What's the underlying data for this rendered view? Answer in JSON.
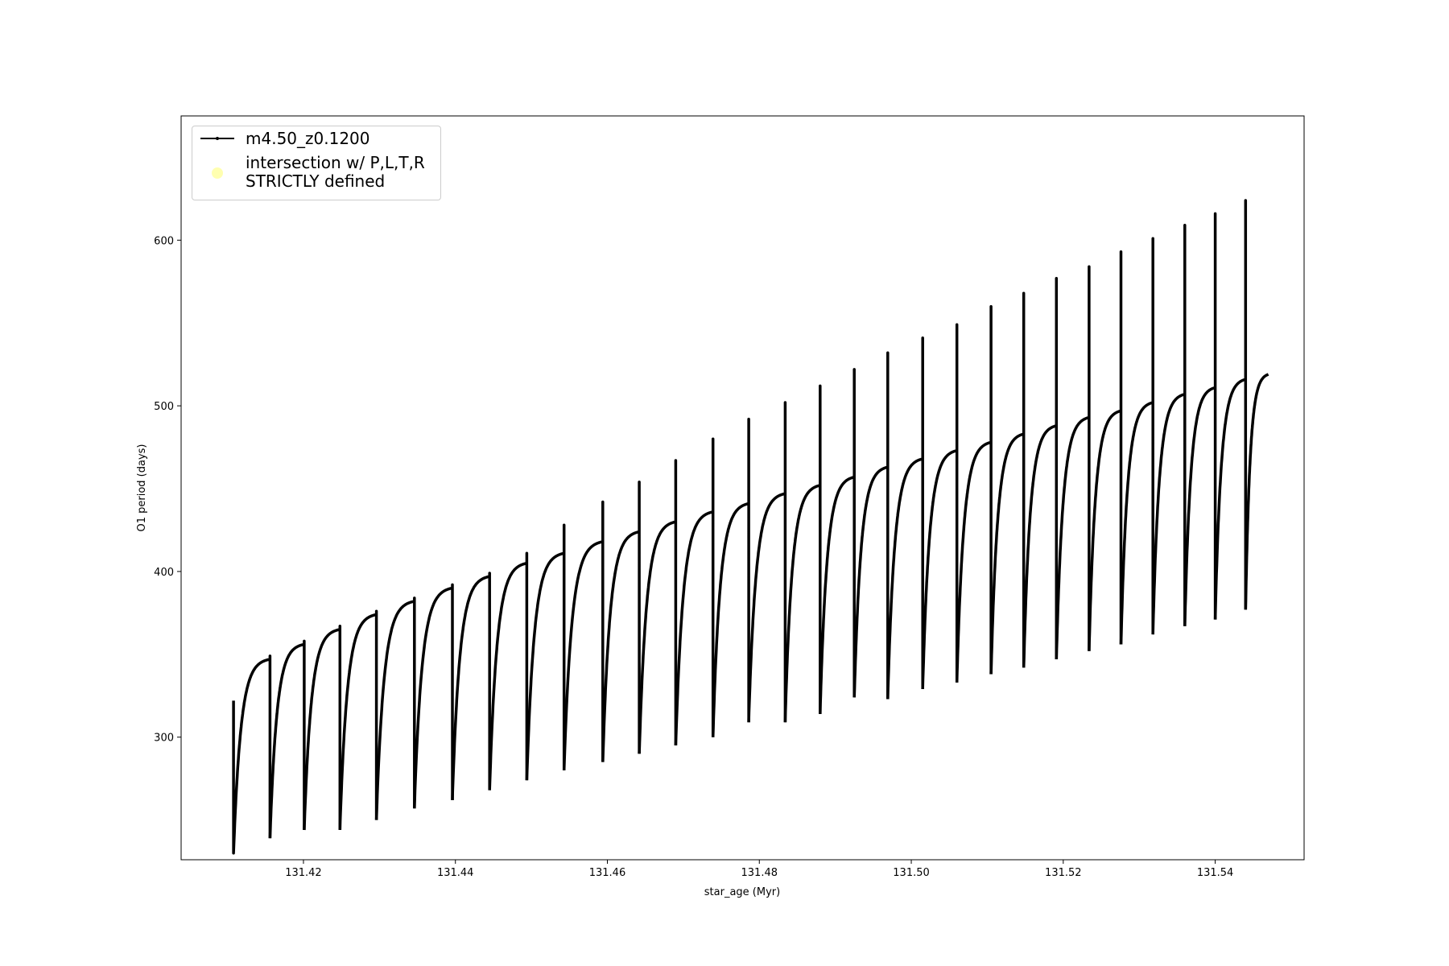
{
  "chart_data": {
    "type": "line",
    "title": "",
    "xlabel": "star_age (Myr)",
    "ylabel": "O1 period (days)",
    "xlim": [
      131.4039,
      131.5517
    ],
    "ylim": [
      226,
      675
    ],
    "xticks": [
      131.42,
      131.44,
      131.46,
      131.48,
      131.5,
      131.52,
      131.54
    ],
    "xtick_labels": [
      "131.42",
      "131.44",
      "131.46",
      "131.48",
      "131.50",
      "131.52",
      "131.54"
    ],
    "yticks": [
      300,
      400,
      500,
      600
    ],
    "ytick_labels": [
      "300",
      "400",
      "500",
      "600"
    ],
    "grid": false,
    "legend_placement": "upper-left",
    "series": [
      {
        "name": "m4.50_z0.1200",
        "color": "#000000",
        "marker": "dot",
        "initial_period": 322,
        "cycle_boundaries_age": [
          131.4108,
          131.4156,
          131.4201,
          131.4248,
          131.4296,
          131.4346,
          131.4396,
          131.4445,
          131.4494,
          131.4543,
          131.4594,
          131.4642,
          131.469,
          131.4739,
          131.4786,
          131.4834,
          131.488,
          131.4925,
          131.4969,
          131.5015,
          131.506,
          131.5105,
          131.5148,
          131.5191,
          131.5234,
          131.5276,
          131.5318,
          131.536,
          131.54,
          131.544,
          131.547
        ],
        "cycle_min_period": [
          230,
          239,
          244,
          244,
          250,
          257,
          262,
          268,
          274,
          280,
          285,
          290,
          295,
          300,
          309,
          309,
          314,
          324,
          323,
          329,
          333,
          338,
          342,
          347,
          352,
          356,
          362,
          367,
          371,
          377
        ],
        "cycle_max_period": [
          347,
          356,
          365,
          374,
          382,
          390,
          397,
          405,
          411,
          418,
          424,
          430,
          436,
          441,
          447,
          452,
          457,
          463,
          468,
          473,
          478,
          483,
          488,
          493,
          497,
          502,
          507,
          511,
          516,
          519
        ],
        "cycle_end_spike_period": [
          349,
          358,
          367,
          376,
          384,
          392,
          399,
          411,
          428,
          442,
          454,
          467,
          480,
          492,
          502,
          512,
          522,
          532,
          541,
          549,
          560,
          568,
          577,
          584,
          593,
          601,
          609,
          616,
          624
        ]
      },
      {
        "name": "intersection w/ P,L,T,R\nSTRICTLY defined",
        "color": "#ffffb0",
        "marker": "circle",
        "points": []
      }
    ]
  },
  "legend": {
    "entries": [
      {
        "label": "m4.50_z0.1200"
      },
      {
        "label_line1": "intersection w/ P,L,T,R",
        "label_line2": "STRICTLY defined"
      }
    ]
  }
}
